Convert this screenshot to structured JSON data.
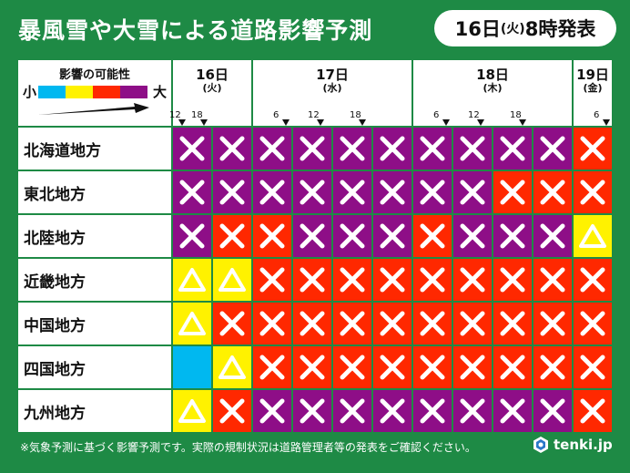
{
  "title": "暴風雪や大雪による道路影響予測",
  "issued": {
    "day": "16日",
    "weekday": "(火)",
    "time": "8時発表"
  },
  "legend": {
    "title": "影響の可能性",
    "low": "小",
    "high": "大"
  },
  "colors": {
    "background": "#1e8a45",
    "level1": "#00b8f0",
    "level2": "#fff200",
    "level3": "#ff2800",
    "level4": "#8e0e87"
  },
  "days": [
    {
      "date": "16日",
      "weekday": "(火)"
    },
    {
      "date": "17日",
      "weekday": "(水)"
    },
    {
      "date": "18日",
      "weekday": "(木)"
    },
    {
      "date": "19日",
      "weekday": "(金)"
    }
  ],
  "ticks": [
    "12",
    "18",
    "6",
    "12",
    "18",
    "6",
    "12",
    "18",
    "6"
  ],
  "regions": [
    {
      "name": "北海道地方",
      "levels": [
        4,
        4,
        4,
        4,
        4,
        4,
        4,
        4,
        4,
        4,
        3
      ]
    },
    {
      "name": "東北地方",
      "levels": [
        4,
        4,
        4,
        4,
        4,
        4,
        4,
        4,
        3,
        3,
        3
      ]
    },
    {
      "name": "北陸地方",
      "levels": [
        4,
        3,
        3,
        4,
        4,
        4,
        3,
        4,
        4,
        4,
        2
      ]
    },
    {
      "name": "近畿地方",
      "levels": [
        2,
        2,
        3,
        3,
        3,
        3,
        3,
        3,
        3,
        3,
        3
      ]
    },
    {
      "name": "中国地方",
      "levels": [
        2,
        3,
        3,
        3,
        3,
        3,
        3,
        3,
        3,
        3,
        3
      ]
    },
    {
      "name": "四国地方",
      "levels": [
        1,
        2,
        3,
        3,
        3,
        3,
        3,
        3,
        3,
        3,
        3
      ]
    },
    {
      "name": "九州地方",
      "levels": [
        2,
        3,
        4,
        4,
        4,
        4,
        4,
        4,
        4,
        4,
        3
      ]
    }
  ],
  "footer": "※気象予測に基づく影響予測です。実際の規制状況は道路管理者等の発表をご確認ください。",
  "logo": {
    "text": "tenki.jp",
    "icon": "tenki-logo-icon"
  }
}
